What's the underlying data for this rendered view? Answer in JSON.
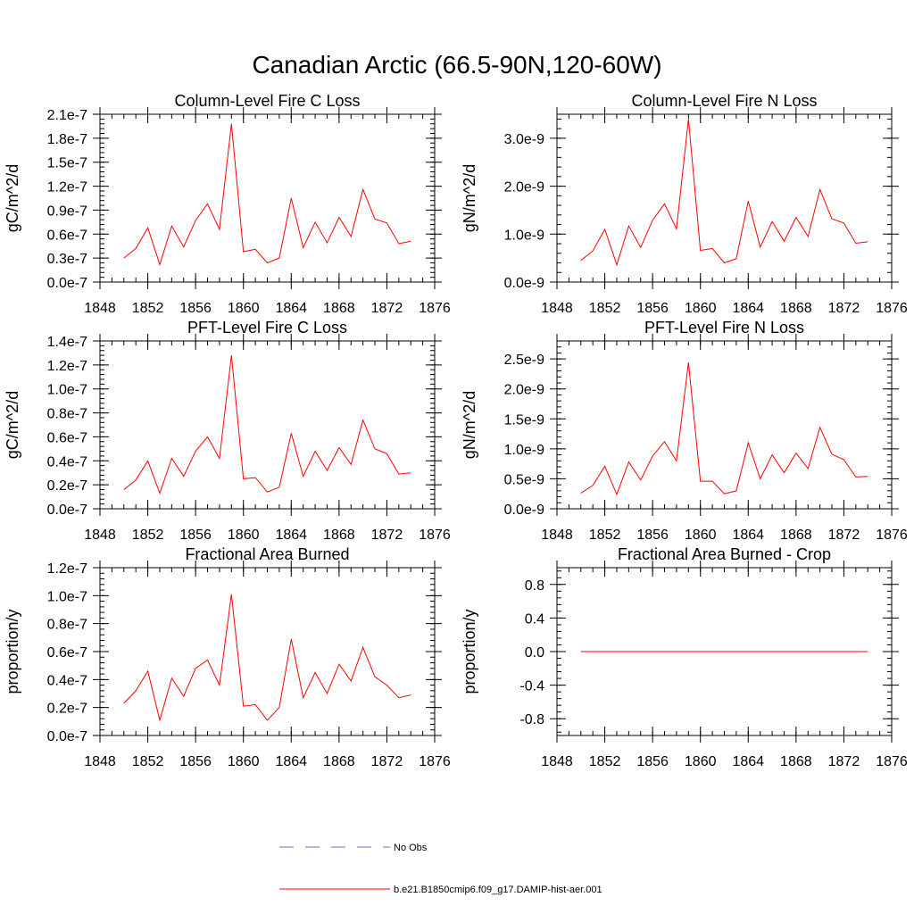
{
  "figure": {
    "title": "Canadian Arctic (66.5-90N,120-60W)"
  },
  "legend": {
    "items": [
      {
        "label": "No Obs",
        "color": "#6b6bd6",
        "dash": "dashed"
      },
      {
        "label": "b.e21.B1850cmip6.f09_g17.DAMIP-hist-aer.001",
        "color": "#ff0000",
        "dash": "solid"
      }
    ]
  },
  "chart_data": [
    {
      "type": "line",
      "title": "Column-Level Fire C Loss",
      "ylabel": "gC/m^2/d",
      "xlim": [
        1848,
        1876
      ],
      "xticks": [
        1848,
        1852,
        1856,
        1860,
        1864,
        1868,
        1872,
        1876
      ],
      "xtick_labels": [
        "1848",
        "1852",
        "1856",
        "1860",
        "1864",
        "1868",
        "1872",
        "1876"
      ],
      "ylim": [
        0,
        2.1e-07
      ],
      "yticks": [
        0,
        3e-08,
        6e-08,
        9e-08,
        1.2e-07,
        1.5e-07,
        1.8e-07,
        2.1e-07
      ],
      "ytick_labels": [
        "0.0e-7",
        "0.3e-7",
        "0.6e-7",
        "0.9e-7",
        "1.2e-7",
        "1.5e-7",
        "1.8e-7",
        "2.1e-7"
      ],
      "series": [
        {
          "x": [
            1850,
            1851,
            1852,
            1853,
            1854,
            1855,
            1856,
            1857,
            1858,
            1859,
            1860,
            1861,
            1862,
            1863,
            1864,
            1865,
            1866,
            1867,
            1868,
            1869,
            1870,
            1871,
            1872,
            1873,
            1874
          ],
          "y": [
            3e-08,
            4.2e-08,
            6.8e-08,
            2.2e-08,
            7e-08,
            4.4e-08,
            7.7e-08,
            9.8e-08,
            6.6e-08,
            1.98e-07,
            3.8e-08,
            4.1e-08,
            2.4e-08,
            3e-08,
            1.05e-07,
            4.3e-08,
            7.5e-08,
            4.9e-08,
            8.1e-08,
            5.7e-08,
            1.16e-07,
            7.9e-08,
            7.4e-08,
            4.8e-08,
            5.1e-08
          ]
        }
      ]
    },
    {
      "type": "line",
      "title": "Column-Level Fire N Loss",
      "ylabel": "gN/m^2/d",
      "xlim": [
        1848,
        1876
      ],
      "xticks": [
        1848,
        1852,
        1856,
        1860,
        1864,
        1868,
        1872,
        1876
      ],
      "xtick_labels": [
        "1848",
        "1852",
        "1856",
        "1860",
        "1864",
        "1868",
        "1872",
        "1876"
      ],
      "ylim": [
        0,
        3.5e-09
      ],
      "yticks": [
        0,
        1e-09,
        2e-09,
        3e-09
      ],
      "ytick_labels": [
        "0.0e-9",
        "1.0e-9",
        "2.0e-9",
        "3.0e-9"
      ],
      "series": [
        {
          "x": [
            1850,
            1851,
            1852,
            1853,
            1854,
            1855,
            1856,
            1857,
            1858,
            1859,
            1860,
            1861,
            1862,
            1863,
            1864,
            1865,
            1866,
            1867,
            1868,
            1869,
            1870,
            1871,
            1872,
            1873,
            1874
          ],
          "y": [
            4.5e-10,
            6.5e-10,
            1.1e-09,
            3.6e-10,
            1.17e-09,
            7.2e-10,
            1.29e-09,
            1.63e-09,
            1.11e-09,
            3.4e-09,
            6.6e-10,
            7e-10,
            4e-10,
            4.9e-10,
            1.69e-09,
            7.3e-10,
            1.26e-09,
            8.5e-10,
            1.35e-09,
            9.5e-10,
            1.93e-09,
            1.32e-09,
            1.23e-09,
            8.1e-10,
            8.4e-10
          ]
        }
      ]
    },
    {
      "type": "line",
      "title": "PFT-Level Fire C Loss",
      "ylabel": "gC/m^2/d",
      "xlim": [
        1848,
        1876
      ],
      "xticks": [
        1848,
        1852,
        1856,
        1860,
        1864,
        1868,
        1872,
        1876
      ],
      "xtick_labels": [
        "1848",
        "1852",
        "1856",
        "1860",
        "1864",
        "1868",
        "1872",
        "1876"
      ],
      "ylim": [
        0,
        1.4e-07
      ],
      "yticks": [
        0,
        2e-08,
        4e-08,
        6e-08,
        8e-08,
        1e-07,
        1.2e-07,
        1.4e-07
      ],
      "ytick_labels": [
        "0.0e-7",
        "0.2e-7",
        "0.4e-7",
        "0.6e-7",
        "0.8e-7",
        "1.0e-7",
        "1.2e-7",
        "1.4e-7"
      ],
      "series": [
        {
          "x": [
            1850,
            1851,
            1852,
            1853,
            1854,
            1855,
            1856,
            1857,
            1858,
            1859,
            1860,
            1861,
            1862,
            1863,
            1864,
            1865,
            1866,
            1867,
            1868,
            1869,
            1870,
            1871,
            1872,
            1873,
            1874
          ],
          "y": [
            1.6e-08,
            2.4e-08,
            4e-08,
            1.3e-08,
            4.2e-08,
            2.7e-08,
            4.8e-08,
            6e-08,
            4.2e-08,
            1.28e-07,
            2.5e-08,
            2.6e-08,
            1.4e-08,
            1.8e-08,
            6.3e-08,
            2.7e-08,
            4.8e-08,
            3.2e-08,
            5.1e-08,
            3.7e-08,
            7.4e-08,
            5e-08,
            4.6e-08,
            2.9e-08,
            3e-08
          ]
        }
      ]
    },
    {
      "type": "line",
      "title": "PFT-Level Fire N Loss",
      "ylabel": "gN/m^2/d",
      "xlim": [
        1848,
        1876
      ],
      "xticks": [
        1848,
        1852,
        1856,
        1860,
        1864,
        1868,
        1872,
        1876
      ],
      "xtick_labels": [
        "1848",
        "1852",
        "1856",
        "1860",
        "1864",
        "1868",
        "1872",
        "1876"
      ],
      "ylim": [
        0,
        2.8e-09
      ],
      "yticks": [
        0,
        5e-10,
        1e-09,
        1.5e-09,
        2e-09,
        2.5e-09
      ],
      "ytick_labels": [
        "0.0e-9",
        "0.5e-9",
        "1.0e-9",
        "1.5e-9",
        "2.0e-9",
        "2.5e-9"
      ],
      "series": [
        {
          "x": [
            1850,
            1851,
            1852,
            1853,
            1854,
            1855,
            1856,
            1857,
            1858,
            1859,
            1860,
            1861,
            1862,
            1863,
            1864,
            1865,
            1866,
            1867,
            1868,
            1869,
            1870,
            1871,
            1872,
            1873,
            1874
          ],
          "y": [
            2.6e-10,
            3.9e-10,
            7.1e-10,
            2.4e-10,
            7.8e-10,
            4.8e-10,
            8.8e-10,
            1.12e-09,
            8e-10,
            2.44e-09,
            4.6e-10,
            4.6e-10,
            2.5e-10,
            3e-10,
            1.1e-09,
            5e-10,
            9e-10,
            6e-10,
            9.3e-10,
            6.7e-10,
            1.36e-09,
            9.1e-10,
            8.2e-10,
            5.3e-10,
            5.4e-10
          ]
        }
      ]
    },
    {
      "type": "line",
      "title": "Fractional Area Burned",
      "ylabel": "proportion/y",
      "xlim": [
        1848,
        1876
      ],
      "xticks": [
        1848,
        1852,
        1856,
        1860,
        1864,
        1868,
        1872,
        1876
      ],
      "xtick_labels": [
        "1848",
        "1852",
        "1856",
        "1860",
        "1864",
        "1868",
        "1872",
        "1876"
      ],
      "ylim": [
        0,
        1.2e-07
      ],
      "yticks": [
        0,
        2e-08,
        4e-08,
        6e-08,
        8e-08,
        1e-07,
        1.2e-07
      ],
      "ytick_labels": [
        "0.0e-7",
        "0.2e-7",
        "0.4e-7",
        "0.6e-7",
        "0.8e-7",
        "1.0e-7",
        "1.2e-7"
      ],
      "series": [
        {
          "x": [
            1850,
            1851,
            1852,
            1853,
            1854,
            1855,
            1856,
            1857,
            1858,
            1859,
            1860,
            1861,
            1862,
            1863,
            1864,
            1865,
            1866,
            1867,
            1868,
            1869,
            1870,
            1871,
            1872,
            1873,
            1874
          ],
          "y": [
            2.3e-08,
            3.2e-08,
            4.6e-08,
            1.1e-08,
            4.1e-08,
            2.8e-08,
            4.8e-08,
            5.4e-08,
            3.6e-08,
            1.01e-07,
            2.1e-08,
            2.2e-08,
            1.1e-08,
            2e-08,
            6.9e-08,
            2.7e-08,
            4.5e-08,
            3e-08,
            5.1e-08,
            3.9e-08,
            6.3e-08,
            4.2e-08,
            3.6e-08,
            2.7e-08,
            2.9e-08
          ]
        }
      ]
    },
    {
      "type": "line",
      "title": "Fractional Area Burned - Crop",
      "ylabel": "proportion/y",
      "xlim": [
        1848,
        1876
      ],
      "xticks": [
        1848,
        1852,
        1856,
        1860,
        1864,
        1868,
        1872,
        1876
      ],
      "xtick_labels": [
        "1848",
        "1852",
        "1856",
        "1860",
        "1864",
        "1868",
        "1872",
        "1876"
      ],
      "ylim": [
        -1.0,
        1.0
      ],
      "yticks": [
        -0.8,
        -0.4,
        0.0,
        0.4,
        0.8
      ],
      "ytick_labels": [
        "-0.8",
        "-0.4",
        "0.0",
        "0.4",
        "0.8"
      ],
      "series": [
        {
          "x": [
            1850,
            1874
          ],
          "y": [
            0,
            0
          ]
        }
      ]
    }
  ]
}
